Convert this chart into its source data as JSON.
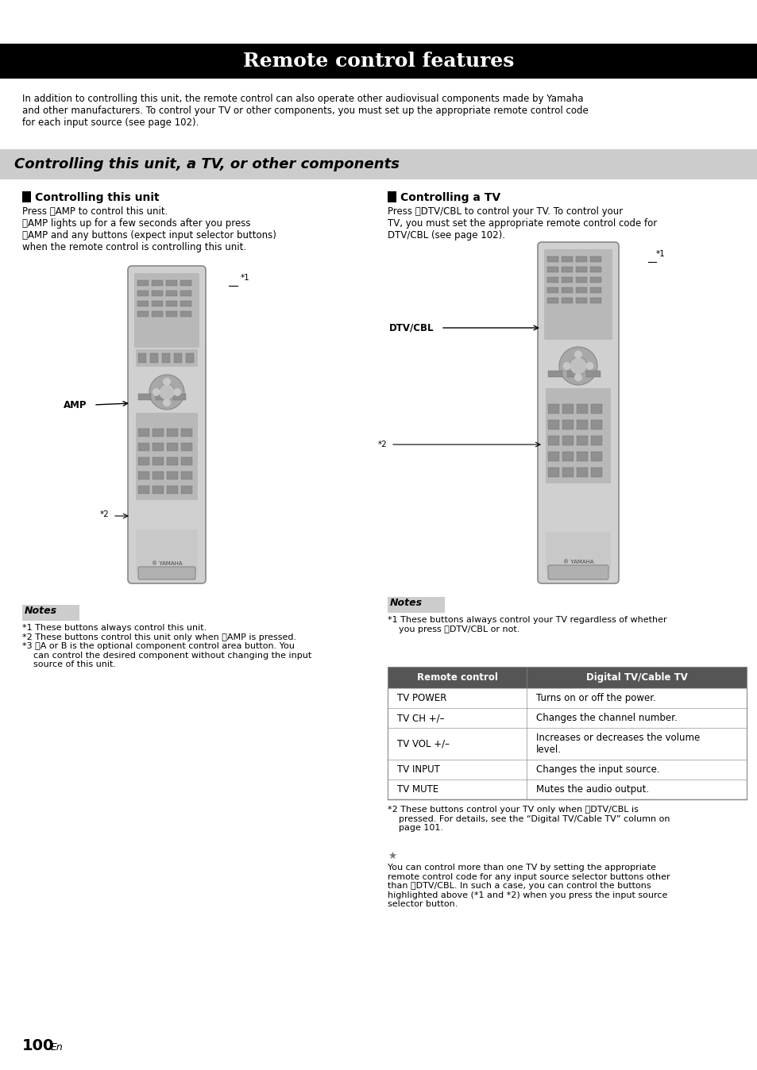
{
  "title": "Remote control features",
  "title_bg": "#000000",
  "title_color": "#ffffff",
  "title_fontsize": 18,
  "section_title": "Controlling this unit, a TV, or other components",
  "section_bg": "#cccccc",
  "intro_text": "In addition to controlling this unit, the remote control can also operate other audiovisual components made by Yamaha\nand other manufacturers. To control your TV or other components, you must set up the appropriate remote control code\nfor each input source (see page 102).",
  "left_heading": "Controlling this unit",
  "right_heading": "Controlling a TV",
  "left_body": "Press ⓤAMP to control this unit.\nⓤAMP lights up for a few seconds after you press\nⓤAMP and any buttons (expect input selector buttons)\nwhen the remote control is controlling this unit.",
  "right_body": "Press ⓣDTV/CBL to control your TV. To control your\nTV, you must set the appropriate remote control code for\nDTV/CBL (see page 102).",
  "amp_label": "AMP",
  "dtvcbl_label": "DTV/CBL",
  "star1_label": "*1",
  "star2_label": "*2",
  "notes_bg": "#cccccc",
  "notes_title": "Notes",
  "left_notes": "*1 These buttons always control this unit.\n*2 These buttons control this unit only when ⓤAMP is pressed.\n*3 ⓣA or B is the optional component control area button. You\n    can control the desired component without changing the input\n    source of this unit.",
  "right_notes_pre": "*1 These buttons always control your TV regardless of whether\n    you press ⓣDTV/CBL or not.",
  "table_header": [
    "Remote control",
    "Digital TV/Cable TV"
  ],
  "table_rows": [
    [
      "TV POWER",
      "Turns on or off the power."
    ],
    [
      "TV CH +/–",
      "Changes the channel number."
    ],
    [
      "TV VOL +/–",
      "Increases or decreases the volume\nlevel."
    ],
    [
      "TV INPUT",
      "Changes the input source."
    ],
    [
      "TV MUTE",
      "Mutes the audio output."
    ]
  ],
  "table_header_bg": "#555555",
  "table_header_color": "#ffffff",
  "right_note2": "*2 These buttons control your TV only when ⓣDTV/CBL is\n    pressed. For details, see the “Digital TV/Cable TV” column on\n    page 101.",
  "tip_text": "You can control more than one TV by setting the appropriate\nremote control code for any input source selector buttons other\nthan ⓣDTV/CBL. In such a case, you can control the buttons\nhighlighted above (*1 and *2) when you press the input source\nselector button.",
  "page_number": "100",
  "en_text": "En",
  "bg_color": "#ffffff"
}
